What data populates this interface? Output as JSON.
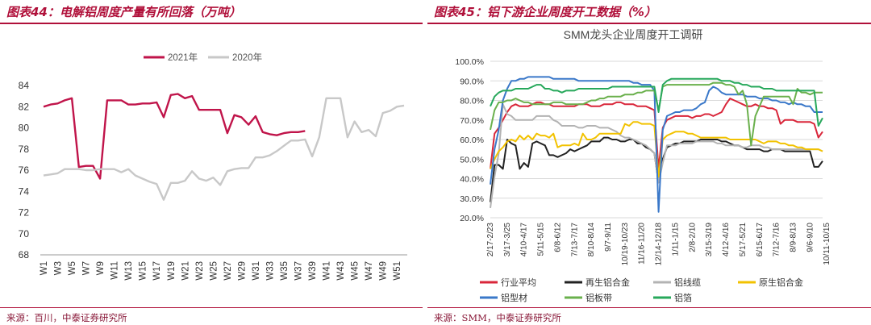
{
  "left_panel": {
    "title": "图表44：电解铝周度产量有所回落（万吨）",
    "source": "来源：百川，中泰证券研究所"
  },
  "right_panel": {
    "title": "图表45：铝下游企业周度开工数据（%）",
    "source": "来源：SMM，中泰证券研究所"
  },
  "chart_data": [
    {
      "type": "line",
      "title": "",
      "ylim": [
        68,
        84
      ],
      "yticks": [
        68,
        70,
        72,
        74,
        76,
        78,
        80,
        82,
        84
      ],
      "x_count": 52,
      "x_tick_labels": [
        "W1",
        "W3",
        "W5",
        "W7",
        "W9",
        "W11",
        "W13",
        "W15",
        "W17",
        "W19",
        "W21",
        "W23",
        "W25",
        "W27",
        "W29",
        "W31",
        "W33",
        "W35",
        "W37",
        "W39",
        "W41",
        "W43",
        "W45",
        "W47",
        "W49",
        "W51"
      ],
      "legend_position": "top-center",
      "grid": false,
      "series": [
        {
          "name": "2021年",
          "color": "#c0144a",
          "values": [
            82.0,
            82.2,
            82.3,
            82.6,
            82.8,
            76.3,
            76.4,
            76.4,
            75.2,
            82.6,
            82.6,
            82.6,
            82.2,
            82.2,
            82.3,
            82.3,
            82.4,
            81.0,
            83.1,
            83.2,
            82.8,
            83.0,
            81.7,
            81.7,
            81.7,
            81.7,
            79.5,
            81.2,
            81.0,
            80.3,
            81.1,
            79.6,
            79.4,
            79.3,
            79.5,
            79.6,
            79.6,
            79.7
          ]
        },
        {
          "name": "2020年",
          "color": "#c8c8c8",
          "values": [
            75.5,
            75.6,
            75.7,
            76.1,
            76.1,
            76.1,
            76.0,
            76.0,
            76.1,
            76.1,
            76.1,
            75.8,
            76.1,
            75.5,
            75.2,
            74.9,
            74.7,
            73.2,
            74.8,
            74.8,
            75.0,
            75.9,
            75.2,
            75.0,
            75.3,
            74.6,
            75.9,
            76.1,
            76.2,
            76.2,
            77.2,
            77.2,
            77.4,
            77.8,
            78.3,
            78.8,
            78.8,
            78.9,
            77.3,
            79.1,
            82.8,
            82.8,
            82.8,
            79.1,
            80.6,
            79.6,
            79.8,
            79.2,
            81.4,
            81.6,
            82.0,
            82.1
          ]
        }
      ]
    },
    {
      "type": "line",
      "title": "SMM龙头企业周度开工调研",
      "ylim": [
        20,
        100
      ],
      "yticks": [
        "20.0%",
        "30.0%",
        "40.0%",
        "50.0%",
        "60.0%",
        "70.0%",
        "80.0%",
        "90.0%",
        "100.0%"
      ],
      "x_count": 80,
      "x_tick_labels": [
        "2/17-2/23",
        "3/17-3/25",
        "4/10-4/17",
        "5/11-5/15",
        "6/8-6/12",
        "7/13-7/17",
        "8/10-8/14",
        "9/7-9/11",
        "10/19-10/23",
        "11/16-11/20",
        "12/14-12/18",
        "1/11-1/15",
        "2/8-2/10",
        "3/15-3/19",
        "4/12-4/16",
        "5/17-5/21",
        "6/15-6/17",
        "7/12-7/16",
        "8/9-8/13",
        "9/6-9/10",
        "10/11-10/15"
      ],
      "legend_position": "bottom",
      "grid": true,
      "series": [
        {
          "name": "行业平均",
          "color": "#d9263a",
          "values": [
            45,
            63,
            66,
            70,
            74,
            77,
            78,
            77,
            77,
            77,
            78,
            79,
            79,
            78,
            78,
            77,
            77,
            77,
            77,
            77,
            77,
            78,
            78,
            78,
            77,
            77,
            77,
            78,
            78,
            78,
            79,
            79,
            78,
            78,
            78,
            77,
            77,
            77,
            76,
            75,
            45,
            66,
            70,
            71,
            72,
            72,
            72,
            72,
            71,
            72,
            72,
            73,
            73,
            72,
            73,
            74,
            78,
            81,
            80,
            79,
            78,
            77,
            77,
            78,
            77,
            77,
            76,
            76,
            75,
            68,
            70,
            70,
            70,
            69,
            69,
            69,
            69,
            68,
            61,
            64
          ]
        },
        {
          "name": "再生铝合金",
          "color": "#222222",
          "values": [
            28,
            47,
            47,
            45,
            60,
            58,
            57,
            45,
            48,
            46,
            58,
            59,
            58,
            57,
            52,
            52,
            51,
            52,
            53,
            55,
            54,
            55,
            56,
            57,
            59,
            59,
            59,
            61,
            61,
            60,
            60,
            59,
            59,
            60,
            60,
            58,
            58,
            56,
            55,
            53,
            38,
            50,
            56,
            57,
            58,
            58,
            59,
            59,
            59,
            59,
            60,
            60,
            60,
            60,
            60,
            59,
            59,
            58,
            57,
            57,
            56,
            55,
            55,
            55,
            55,
            54,
            54,
            55,
            55,
            55,
            54,
            54,
            54,
            54,
            54,
            54,
            54,
            46,
            46,
            49
          ]
        },
        {
          "name": "铝线缆",
          "color": "#b3b3b3",
          "values": [
            25,
            41,
            53,
            78,
            73,
            72,
            70,
            70,
            70,
            70,
            70,
            72,
            72,
            72,
            72,
            70,
            69,
            67,
            67,
            67,
            67,
            66,
            66,
            67,
            67,
            67,
            66,
            66,
            66,
            65,
            64,
            62,
            61,
            61,
            60,
            59,
            58,
            57,
            55,
            53,
            38,
            48,
            57,
            57,
            57,
            58,
            58,
            58,
            58,
            59,
            59,
            59,
            59,
            59,
            58,
            58,
            57,
            57,
            57,
            57,
            56,
            56,
            57,
            57,
            57,
            56,
            56,
            55,
            55,
            55,
            55,
            55,
            55,
            55,
            55,
            55,
            55,
            55,
            55,
            54
          ]
        },
        {
          "name": "原生铝合金",
          "color": "#f2c200",
          "values": [
            45,
            50,
            54,
            56,
            59,
            60,
            59,
            62,
            60,
            62,
            60,
            63,
            62,
            62,
            61,
            63,
            56,
            57,
            57,
            57,
            58,
            57,
            63,
            60,
            60,
            61,
            63,
            63,
            63,
            63,
            63,
            63,
            68,
            67,
            69,
            69,
            68,
            68,
            68,
            67,
            41,
            60,
            62,
            63,
            64,
            64,
            64,
            63,
            63,
            62,
            61,
            61,
            61,
            61,
            61,
            61,
            61,
            60,
            60,
            60,
            60,
            60,
            60,
            60,
            59,
            58,
            59,
            59,
            59,
            58,
            58,
            57,
            57,
            56,
            56,
            55,
            55,
            55,
            55,
            54
          ]
        },
        {
          "name": "铝型材",
          "color": "#3a78c9",
          "values": [
            37,
            55,
            65,
            80,
            86,
            90,
            90,
            91,
            91,
            92,
            92,
            92,
            92,
            92,
            92,
            91,
            91,
            91,
            91,
            91,
            91,
            90,
            90,
            90,
            90,
            90,
            90,
            90,
            90,
            90,
            90,
            90,
            90,
            90,
            89,
            89,
            88,
            88,
            88,
            85,
            23,
            65,
            72,
            73,
            74,
            74,
            75,
            75,
            75,
            76,
            78,
            79,
            85,
            87,
            86,
            84,
            83,
            83,
            83,
            83,
            83,
            82,
            82,
            82,
            81,
            81,
            81,
            80,
            80,
            79,
            79,
            78,
            79,
            78,
            78,
            77,
            77,
            74,
            74,
            74
          ]
        },
        {
          "name": "铝板带",
          "color": "#6ab04c",
          "values": [
            65,
            75,
            79,
            79,
            80,
            80,
            81,
            80,
            79,
            79,
            78,
            78,
            78,
            78,
            78,
            79,
            79,
            79,
            78,
            78,
            78,
            78,
            78,
            79,
            80,
            80,
            81,
            81,
            82,
            82,
            82,
            82,
            83,
            83,
            83,
            84,
            84,
            85,
            85,
            85,
            75,
            87,
            88,
            88,
            88,
            88,
            88,
            88,
            88,
            88,
            88,
            88,
            88,
            89,
            89,
            89,
            88,
            88,
            87,
            83,
            85,
            78,
            57,
            72,
            77,
            82,
            82,
            82,
            82,
            82,
            82,
            82,
            78,
            86,
            84,
            84,
            83,
            84,
            84,
            84
          ]
        },
        {
          "name": "铝箔",
          "color": "#27a85b",
          "values": [
            77,
            82,
            84,
            85,
            85,
            85,
            86,
            86,
            86,
            86,
            87,
            88,
            88,
            86,
            86,
            85,
            85,
            84,
            85,
            85,
            85,
            86,
            86,
            86,
            86,
            86,
            86,
            86,
            86,
            87,
            87,
            87,
            87,
            87,
            87,
            87,
            87,
            87,
            87,
            87,
            74,
            88,
            90,
            91,
            91,
            91,
            91,
            91,
            91,
            91,
            91,
            91,
            91,
            91,
            91,
            90,
            90,
            90,
            89,
            89,
            88,
            88,
            87,
            87,
            87,
            86,
            86,
            86,
            85,
            85,
            85,
            85,
            85,
            85,
            85,
            85,
            85,
            85,
            67,
            71
          ]
        }
      ]
    }
  ]
}
